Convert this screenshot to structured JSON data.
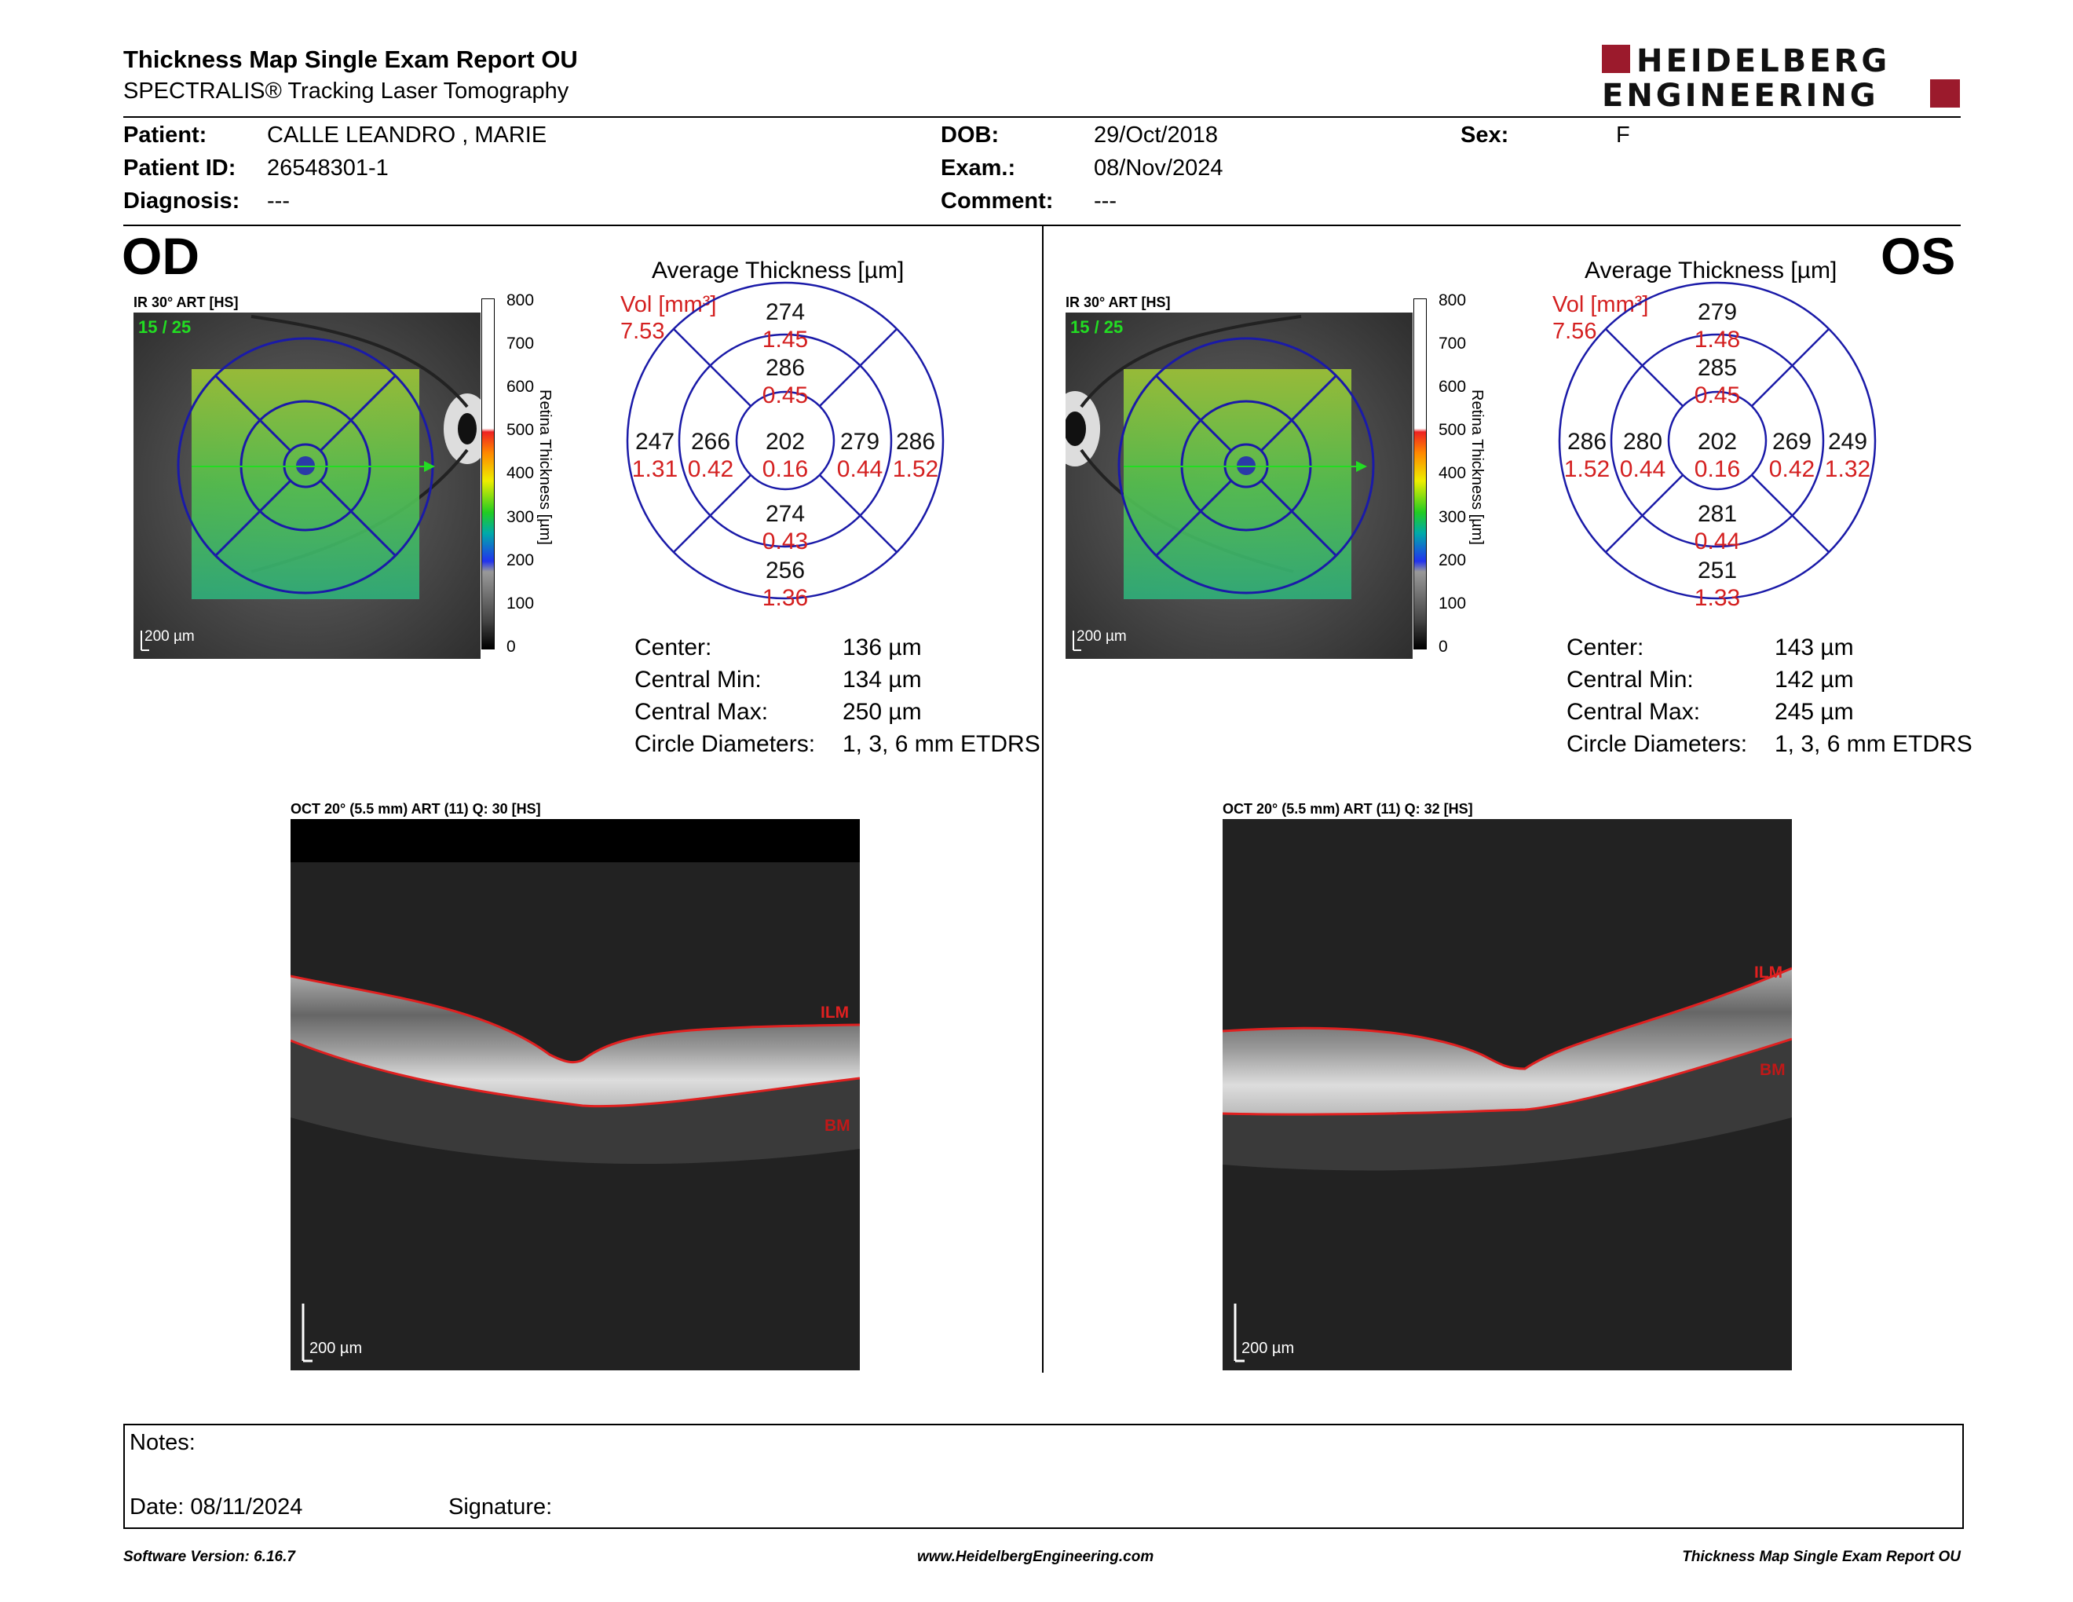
{
  "header": {
    "title": "Thickness Map Single Exam Report OU",
    "subtitle": "SPECTRALIS® Tracking Laser Tomography",
    "logo_line1": "HEIDELBERG",
    "logo_line2": "ENGINEERING"
  },
  "patient": {
    "patient_label": "Patient:",
    "patient_value": "CALLE LEANDRO , MARIE",
    "id_label": "Patient ID:",
    "id_value": "26548301-1",
    "diagnosis_label": "Diagnosis:",
    "diagnosis_value": "---",
    "dob_label": "DOB:",
    "dob_value": "29/Oct/2018",
    "exam_label": "Exam.:",
    "exam_value": "08/Nov/2024",
    "comment_label": "Comment:",
    "comment_value": "---",
    "sex_label": "Sex:",
    "sex_value": "F"
  },
  "od": {
    "eye": "OD",
    "ir_label": "IR 30° ART [HS]",
    "frame_count": "15 / 25",
    "scale_label": "200 µm",
    "avg_title": "Average Thickness [µm]",
    "vol_label": "Vol [mm³]",
    "vol_value": "7.53",
    "sectors": {
      "center_t": "202",
      "center_v": "0.16",
      "inner_sup_t": "286",
      "inner_sup_v": "0.45",
      "inner_inf_t": "274",
      "inner_inf_v": "0.43",
      "inner_left_t": "266",
      "inner_left_v": "0.42",
      "inner_right_t": "279",
      "inner_right_v": "0.44",
      "outer_sup_t": "274",
      "outer_sup_v": "1.45",
      "outer_inf_t": "256",
      "outer_inf_v": "1.36",
      "outer_left_t": "247",
      "outer_left_v": "1.31",
      "outer_right_t": "286",
      "outer_right_v": "1.52"
    },
    "stats": {
      "center_label": "Center:",
      "center_value": "136 µm",
      "min_label": "Central Min:",
      "min_value": "134 µm",
      "max_label": "Central Max:",
      "max_value": "250 µm",
      "diam_label": "Circle Diameters:",
      "diam_value": "1, 3, 6 mm ETDRS"
    },
    "oct_label": "OCT 20° (5.5 mm) ART (11) Q: 30 [HS]",
    "oct_scale": "200 µm",
    "ilm": "ILM",
    "bm": "BM"
  },
  "os": {
    "eye": "OS",
    "ir_label": "IR 30° ART [HS]",
    "frame_count": "15 / 25",
    "scale_label": "200 µm",
    "avg_title": "Average Thickness [µm]",
    "vol_label": "Vol [mm³]",
    "vol_value": "7.56",
    "sectors": {
      "center_t": "202",
      "center_v": "0.16",
      "inner_sup_t": "285",
      "inner_sup_v": "0.45",
      "inner_inf_t": "281",
      "inner_inf_v": "0.44",
      "inner_left_t": "280",
      "inner_left_v": "0.44",
      "inner_right_t": "269",
      "inner_right_v": "0.42",
      "outer_sup_t": "279",
      "outer_sup_v": "1.48",
      "outer_inf_t": "251",
      "outer_inf_v": "1.33",
      "outer_left_t": "286",
      "outer_left_v": "1.52",
      "outer_right_t": "249",
      "outer_right_v": "1.32"
    },
    "stats": {
      "center_label": "Center:",
      "center_value": "143 µm",
      "min_label": "Central Min:",
      "min_value": "142 µm",
      "max_label": "Central Max:",
      "max_value": "245 µm",
      "diam_label": "Circle Diameters:",
      "diam_value": "1, 3, 6 mm ETDRS"
    },
    "oct_label": "OCT 20° (5.5 mm) ART (11) Q: 32 [HS]",
    "oct_scale": "200 µm",
    "ilm": "ILM",
    "bm": "BM"
  },
  "colorbar": {
    "ticks": [
      "800",
      "700",
      "600",
      "500",
      "400",
      "300",
      "200",
      "100",
      "0"
    ],
    "title": "Retina Thickness [µm]"
  },
  "notes": {
    "notes_label": "Notes:",
    "date_label": "Date: 08/11/2024",
    "signature_label": "Signature:"
  },
  "footer": {
    "software": "Software Version: 6.16.7",
    "website": "www.HeidelbergEngineering.com",
    "report_name": "Thickness Map Single Exam Report OU"
  },
  "colors": {
    "grid_blue": "#1a1aa8",
    "volume_red": "#d42020",
    "fixation_green": "#22dd22",
    "logo_red": "#9b1a2c"
  }
}
